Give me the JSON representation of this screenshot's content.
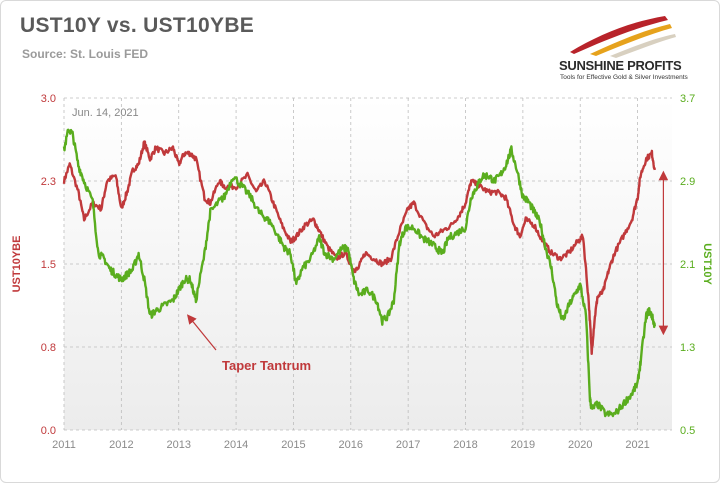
{
  "header": {
    "title": "UST10Y vs. UST10YBE",
    "source": "Source: St. Louis FED"
  },
  "logo": {
    "name": "SUNSHINE PROFITS",
    "tagline": "Tools for Effective Gold & Silver Investments"
  },
  "colors": {
    "breakeven": "#c0393b",
    "yield": "#5aad1e",
    "annotation": "#c0393b",
    "axis_text": "#9a9a9a"
  },
  "chart_data": {
    "type": "line",
    "date_label": "Jun. 14, 2021",
    "xlabel": "",
    "x_ticks": [
      "2011",
      "2012",
      "2013",
      "2014",
      "2015",
      "2016",
      "2017",
      "2018",
      "2019",
      "2020",
      "2021"
    ],
    "x_range": [
      2011.0,
      2021.6
    ],
    "left_axis": {
      "label": "UST10YBE",
      "ylim": [
        0.0,
        3.0
      ],
      "ticks": [
        "0.0",
        "0.8",
        "1.5",
        "2.3",
        "3.0"
      ]
    },
    "right_axis": {
      "label": "UST10Y",
      "ylim": [
        0.5,
        3.7
      ],
      "ticks": [
        "0.5",
        "1.3",
        "2.1",
        "2.9",
        "3.7"
      ]
    },
    "grid": true,
    "series": [
      {
        "name": "UST10YBE",
        "axis": "left",
        "x": [
          2011.0,
          2011.1,
          2011.25,
          2011.35,
          2011.5,
          2011.65,
          2011.75,
          2011.9,
          2012.0,
          2012.1,
          2012.2,
          2012.3,
          2012.4,
          2012.5,
          2012.6,
          2012.75,
          2012.9,
          2013.0,
          2013.1,
          2013.2,
          2013.3,
          2013.45,
          2013.55,
          2013.7,
          2013.8,
          2014.0,
          2014.2,
          2014.35,
          2014.5,
          2014.65,
          2014.8,
          2014.95,
          2015.05,
          2015.2,
          2015.35,
          2015.45,
          2015.6,
          2015.75,
          2015.9,
          2016.05,
          2016.12,
          2016.25,
          2016.4,
          2016.55,
          2016.7,
          2016.85,
          2017.0,
          2017.1,
          2017.3,
          2017.45,
          2017.6,
          2017.75,
          2017.9,
          2018.0,
          2018.1,
          2018.25,
          2018.4,
          2018.55,
          2018.7,
          2018.85,
          2018.95,
          2019.05,
          2019.2,
          2019.35,
          2019.5,
          2019.65,
          2019.8,
          2019.95,
          2020.05,
          2020.15,
          2020.2,
          2020.25,
          2020.3,
          2020.4,
          2020.5,
          2020.6,
          2020.75,
          2020.9,
          2021.0,
          2021.05,
          2021.15,
          2021.25,
          2021.3
        ],
        "y": [
          2.25,
          2.4,
          2.15,
          1.9,
          2.05,
          2.0,
          2.25,
          2.3,
          2.0,
          2.15,
          2.35,
          2.4,
          2.6,
          2.45,
          2.55,
          2.5,
          2.55,
          2.4,
          2.5,
          2.5,
          2.45,
          2.1,
          2.05,
          2.25,
          2.2,
          2.2,
          2.3,
          2.15,
          2.25,
          2.05,
          1.85,
          1.7,
          1.75,
          1.85,
          1.9,
          1.8,
          1.65,
          1.55,
          1.6,
          1.45,
          1.45,
          1.6,
          1.55,
          1.5,
          1.55,
          1.8,
          2.0,
          2.05,
          1.85,
          1.75,
          1.8,
          1.85,
          1.95,
          2.05,
          2.25,
          2.2,
          2.15,
          2.15,
          2.1,
          1.85,
          1.75,
          1.9,
          1.85,
          1.7,
          1.6,
          1.55,
          1.6,
          1.7,
          1.75,
          1.15,
          0.7,
          1.0,
          1.2,
          1.25,
          1.45,
          1.6,
          1.75,
          1.9,
          2.1,
          2.3,
          2.45,
          2.5,
          2.35
        ]
      },
      {
        "name": "UST10Y",
        "axis": "right",
        "x": [
          2011.0,
          2011.08,
          2011.15,
          2011.25,
          2011.35,
          2011.5,
          2011.6,
          2011.7,
          2011.8,
          2011.9,
          2012.0,
          2012.1,
          2012.2,
          2012.3,
          2012.4,
          2012.5,
          2012.6,
          2012.75,
          2012.9,
          2013.0,
          2013.1,
          2013.2,
          2013.3,
          2013.45,
          2013.55,
          2013.7,
          2013.8,
          2013.95,
          2014.1,
          2014.25,
          2014.4,
          2014.5,
          2014.6,
          2014.75,
          2014.85,
          2014.95,
          2015.05,
          2015.15,
          2015.3,
          2015.45,
          2015.55,
          2015.7,
          2015.85,
          2015.95,
          2016.05,
          2016.15,
          2016.3,
          2016.45,
          2016.55,
          2016.65,
          2016.75,
          2016.85,
          2016.95,
          2017.1,
          2017.25,
          2017.4,
          2017.5,
          2017.6,
          2017.7,
          2017.85,
          2018.0,
          2018.1,
          2018.2,
          2018.3,
          2018.4,
          2018.5,
          2018.6,
          2018.7,
          2018.8,
          2018.9,
          2019.0,
          2019.1,
          2019.2,
          2019.3,
          2019.4,
          2019.5,
          2019.6,
          2019.7,
          2019.8,
          2019.9,
          2020.0,
          2020.1,
          2020.17,
          2020.2,
          2020.3,
          2020.45,
          2020.6,
          2020.75,
          2020.9,
          2021.0,
          2021.05,
          2021.15,
          2021.2,
          2021.25,
          2021.3
        ],
        "y": [
          3.2,
          3.4,
          3.35,
          3.05,
          2.9,
          2.7,
          2.2,
          2.15,
          2.05,
          2.0,
          1.95,
          2.0,
          2.05,
          2.2,
          1.95,
          1.6,
          1.65,
          1.7,
          1.75,
          1.85,
          1.95,
          1.95,
          1.75,
          2.2,
          2.6,
          2.7,
          2.75,
          2.95,
          2.85,
          2.75,
          2.6,
          2.55,
          2.5,
          2.35,
          2.25,
          2.2,
          1.9,
          2.05,
          2.15,
          2.35,
          2.2,
          2.15,
          2.25,
          2.25,
          1.95,
          1.8,
          1.85,
          1.75,
          1.55,
          1.6,
          1.75,
          2.3,
          2.45,
          2.45,
          2.35,
          2.3,
          2.25,
          2.2,
          2.35,
          2.4,
          2.45,
          2.75,
          2.85,
          2.95,
          2.95,
          2.9,
          2.95,
          3.05,
          3.2,
          3.0,
          2.75,
          2.7,
          2.6,
          2.5,
          2.25,
          2.05,
          1.7,
          1.55,
          1.7,
          1.8,
          1.9,
          1.6,
          0.8,
          0.7,
          0.75,
          0.65,
          0.65,
          0.75,
          0.85,
          0.95,
          1.15,
          1.6,
          1.65,
          1.6,
          1.5
        ]
      }
    ],
    "annotations": [
      {
        "text": "Taper Tantrum",
        "arrow_to_x": 2013.2,
        "arrow_to_axis": "right",
        "arrow_to_y": 1.7
      },
      {
        "text": "",
        "type": "double-arrow",
        "x": 2021.45,
        "y_from_left": 2.3,
        "y_to_left": 0.9
      }
    ]
  }
}
